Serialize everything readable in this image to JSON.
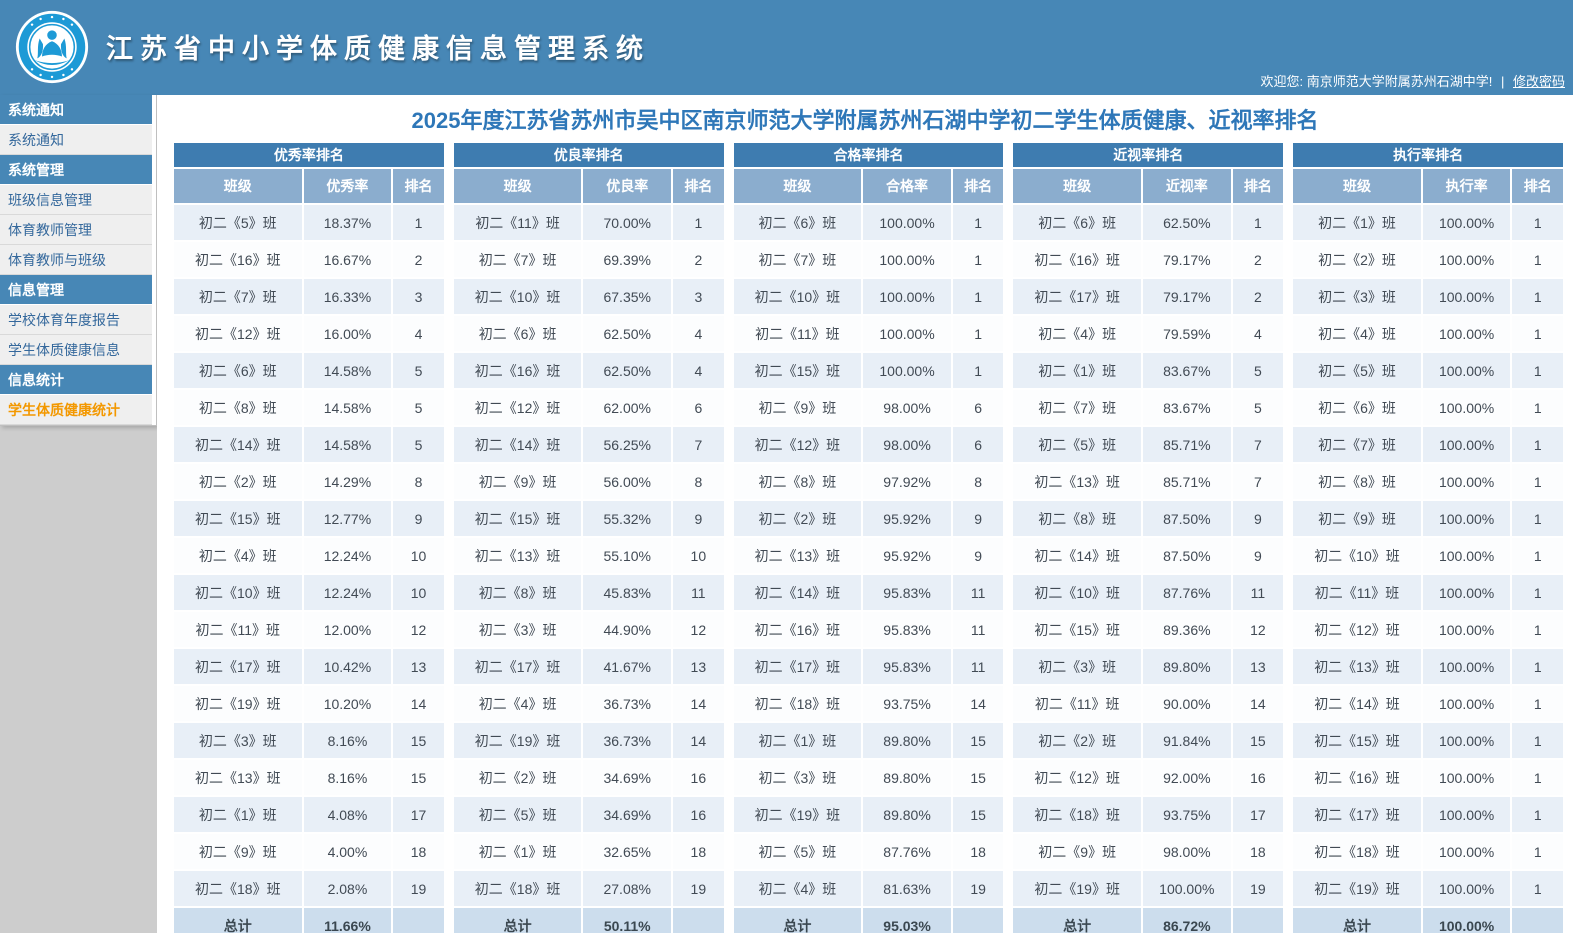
{
  "app": {
    "title": "江苏省中小学体质健康信息管理系统",
    "welcome_text": "欢迎您: 南京师范大学附属苏州石湖中学!",
    "separator": "|",
    "change_password_label": "修改密码"
  },
  "colors": {
    "header_blue": "#4787b6",
    "table_title_blue": "#3e7cb0",
    "table_header_blue": "#8badce",
    "row_stripe_blue": "#e8eff7",
    "total_row_blue": "#ccdded",
    "active_item_orange": "#f39800",
    "page_title_blue": "#2e77b8"
  },
  "sidebar": {
    "sections": [
      {
        "header": "系统通知",
        "items": [
          {
            "label": "系统通知",
            "active": false
          }
        ]
      },
      {
        "header": "系统管理",
        "items": [
          {
            "label": "班级信息管理",
            "active": false
          },
          {
            "label": "体育教师管理",
            "active": false
          },
          {
            "label": "体育教师与班级",
            "active": false
          }
        ]
      },
      {
        "header": "信息管理",
        "items": [
          {
            "label": "学校体育年度报告",
            "active": false
          },
          {
            "label": "学生体质健康信息",
            "active": false
          }
        ]
      },
      {
        "header": "信息统计",
        "items": [
          {
            "label": "学生体质健康统计",
            "active": true
          }
        ]
      }
    ]
  },
  "main": {
    "page_title": "2025年度江苏省苏州市吴中区南京师范大学附属苏州石湖中学初二学生体质健康、近视率排名",
    "total_label": "总计",
    "tables": [
      {
        "title": "优秀率排名",
        "columns": [
          "班级",
          "优秀率",
          "排名"
        ],
        "rows": [
          [
            "初二《5》班",
            "18.37%",
            "1"
          ],
          [
            "初二《16》班",
            "16.67%",
            "2"
          ],
          [
            "初二《7》班",
            "16.33%",
            "3"
          ],
          [
            "初二《12》班",
            "16.00%",
            "4"
          ],
          [
            "初二《6》班",
            "14.58%",
            "5"
          ],
          [
            "初二《8》班",
            "14.58%",
            "5"
          ],
          [
            "初二《14》班",
            "14.58%",
            "5"
          ],
          [
            "初二《2》班",
            "14.29%",
            "8"
          ],
          [
            "初二《15》班",
            "12.77%",
            "9"
          ],
          [
            "初二《4》班",
            "12.24%",
            "10"
          ],
          [
            "初二《10》班",
            "12.24%",
            "10"
          ],
          [
            "初二《11》班",
            "12.00%",
            "12"
          ],
          [
            "初二《17》班",
            "10.42%",
            "13"
          ],
          [
            "初二《19》班",
            "10.20%",
            "14"
          ],
          [
            "初二《3》班",
            "8.16%",
            "15"
          ],
          [
            "初二《13》班",
            "8.16%",
            "15"
          ],
          [
            "初二《1》班",
            "4.08%",
            "17"
          ],
          [
            "初二《9》班",
            "4.00%",
            "18"
          ],
          [
            "初二《18》班",
            "2.08%",
            "19"
          ]
        ],
        "total": "11.66%"
      },
      {
        "title": "优良率排名",
        "columns": [
          "班级",
          "优良率",
          "排名"
        ],
        "rows": [
          [
            "初二《11》班",
            "70.00%",
            "1"
          ],
          [
            "初二《7》班",
            "69.39%",
            "2"
          ],
          [
            "初二《10》班",
            "67.35%",
            "3"
          ],
          [
            "初二《6》班",
            "62.50%",
            "4"
          ],
          [
            "初二《16》班",
            "62.50%",
            "4"
          ],
          [
            "初二《12》班",
            "62.00%",
            "6"
          ],
          [
            "初二《14》班",
            "56.25%",
            "7"
          ],
          [
            "初二《9》班",
            "56.00%",
            "8"
          ],
          [
            "初二《15》班",
            "55.32%",
            "9"
          ],
          [
            "初二《13》班",
            "55.10%",
            "10"
          ],
          [
            "初二《8》班",
            "45.83%",
            "11"
          ],
          [
            "初二《3》班",
            "44.90%",
            "12"
          ],
          [
            "初二《17》班",
            "41.67%",
            "13"
          ],
          [
            "初二《4》班",
            "36.73%",
            "14"
          ],
          [
            "初二《19》班",
            "36.73%",
            "14"
          ],
          [
            "初二《2》班",
            "34.69%",
            "16"
          ],
          [
            "初二《5》班",
            "34.69%",
            "16"
          ],
          [
            "初二《1》班",
            "32.65%",
            "18"
          ],
          [
            "初二《18》班",
            "27.08%",
            "19"
          ]
        ],
        "total": "50.11%"
      },
      {
        "title": "合格率排名",
        "columns": [
          "班级",
          "合格率",
          "排名"
        ],
        "rows": [
          [
            "初二《6》班",
            "100.00%",
            "1"
          ],
          [
            "初二《7》班",
            "100.00%",
            "1"
          ],
          [
            "初二《10》班",
            "100.00%",
            "1"
          ],
          [
            "初二《11》班",
            "100.00%",
            "1"
          ],
          [
            "初二《15》班",
            "100.00%",
            "1"
          ],
          [
            "初二《9》班",
            "98.00%",
            "6"
          ],
          [
            "初二《12》班",
            "98.00%",
            "6"
          ],
          [
            "初二《8》班",
            "97.92%",
            "8"
          ],
          [
            "初二《2》班",
            "95.92%",
            "9"
          ],
          [
            "初二《13》班",
            "95.92%",
            "9"
          ],
          [
            "初二《14》班",
            "95.83%",
            "11"
          ],
          [
            "初二《16》班",
            "95.83%",
            "11"
          ],
          [
            "初二《17》班",
            "95.83%",
            "11"
          ],
          [
            "初二《18》班",
            "93.75%",
            "14"
          ],
          [
            "初二《1》班",
            "89.80%",
            "15"
          ],
          [
            "初二《3》班",
            "89.80%",
            "15"
          ],
          [
            "初二《19》班",
            "89.80%",
            "15"
          ],
          [
            "初二《5》班",
            "87.76%",
            "18"
          ],
          [
            "初二《4》班",
            "81.63%",
            "19"
          ]
        ],
        "total": "95.03%"
      },
      {
        "title": "近视率排名",
        "columns": [
          "班级",
          "近视率",
          "排名"
        ],
        "rows": [
          [
            "初二《6》班",
            "62.50%",
            "1"
          ],
          [
            "初二《16》班",
            "79.17%",
            "2"
          ],
          [
            "初二《17》班",
            "79.17%",
            "2"
          ],
          [
            "初二《4》班",
            "79.59%",
            "4"
          ],
          [
            "初二《1》班",
            "83.67%",
            "5"
          ],
          [
            "初二《7》班",
            "83.67%",
            "5"
          ],
          [
            "初二《5》班",
            "85.71%",
            "7"
          ],
          [
            "初二《13》班",
            "85.71%",
            "7"
          ],
          [
            "初二《8》班",
            "87.50%",
            "9"
          ],
          [
            "初二《14》班",
            "87.50%",
            "9"
          ],
          [
            "初二《10》班",
            "87.76%",
            "11"
          ],
          [
            "初二《15》班",
            "89.36%",
            "12"
          ],
          [
            "初二《3》班",
            "89.80%",
            "13"
          ],
          [
            "初二《11》班",
            "90.00%",
            "14"
          ],
          [
            "初二《2》班",
            "91.84%",
            "15"
          ],
          [
            "初二《12》班",
            "92.00%",
            "16"
          ],
          [
            "初二《18》班",
            "93.75%",
            "17"
          ],
          [
            "初二《9》班",
            "98.00%",
            "18"
          ],
          [
            "初二《19》班",
            "100.00%",
            "19"
          ]
        ],
        "total": "86.72%"
      },
      {
        "title": "执行率排名",
        "columns": [
          "班级",
          "执行率",
          "排名"
        ],
        "rows": [
          [
            "初二《1》班",
            "100.00%",
            "1"
          ],
          [
            "初二《2》班",
            "100.00%",
            "1"
          ],
          [
            "初二《3》班",
            "100.00%",
            "1"
          ],
          [
            "初二《4》班",
            "100.00%",
            "1"
          ],
          [
            "初二《5》班",
            "100.00%",
            "1"
          ],
          [
            "初二《6》班",
            "100.00%",
            "1"
          ],
          [
            "初二《7》班",
            "100.00%",
            "1"
          ],
          [
            "初二《8》班",
            "100.00%",
            "1"
          ],
          [
            "初二《9》班",
            "100.00%",
            "1"
          ],
          [
            "初二《10》班",
            "100.00%",
            "1"
          ],
          [
            "初二《11》班",
            "100.00%",
            "1"
          ],
          [
            "初二《12》班",
            "100.00%",
            "1"
          ],
          [
            "初二《13》班",
            "100.00%",
            "1"
          ],
          [
            "初二《14》班",
            "100.00%",
            "1"
          ],
          [
            "初二《15》班",
            "100.00%",
            "1"
          ],
          [
            "初二《16》班",
            "100.00%",
            "1"
          ],
          [
            "初二《17》班",
            "100.00%",
            "1"
          ],
          [
            "初二《18》班",
            "100.00%",
            "1"
          ],
          [
            "初二《19》班",
            "100.00%",
            "1"
          ]
        ],
        "total": "100.00%"
      }
    ]
  }
}
